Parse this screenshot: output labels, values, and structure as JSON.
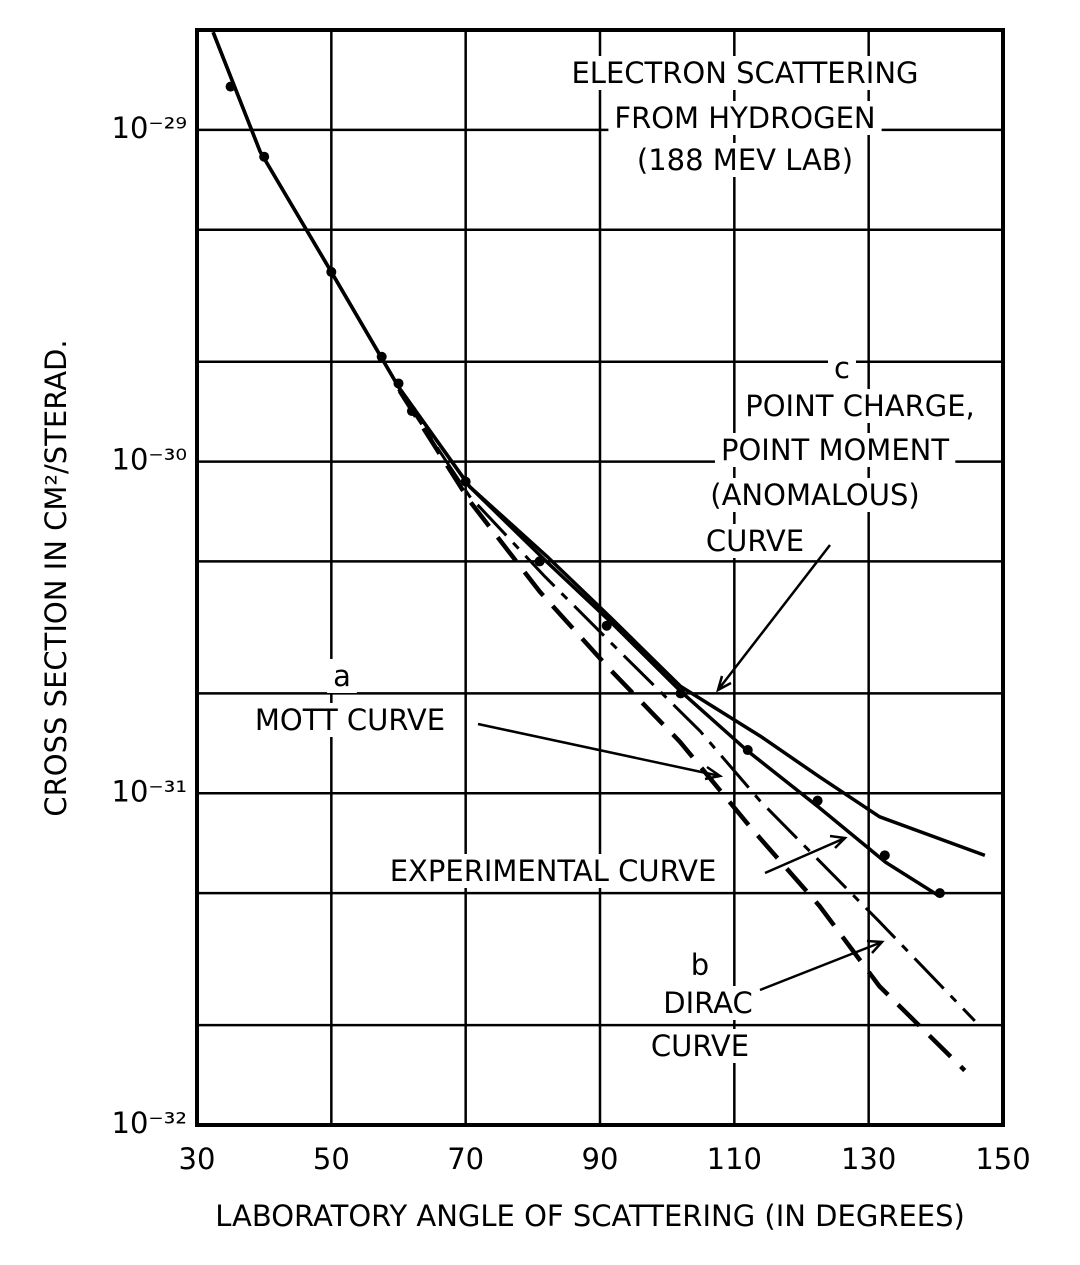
{
  "chart_data": {
    "type": "line",
    "log_y": true,
    "grid": true,
    "annotations": [
      {
        "text": "ELECTRON SCATTERING"
      },
      {
        "text": "FROM HYDROGEN"
      },
      {
        "text": "(188 MEV LAB)"
      },
      {
        "text": "c"
      },
      {
        "text": "POINT CHARGE,"
      },
      {
        "text": "POINT MOMENT"
      },
      {
        "text": "(ANOMALOUS)"
      },
      {
        "text": "CURVE"
      },
      {
        "text": "a"
      },
      {
        "text": "MOTT CURVE"
      },
      {
        "text": "EXPERIMENTAL CURVE"
      },
      {
        "text": "b"
      },
      {
        "text": "DIRAC"
      },
      {
        "text": "CURVE"
      }
    ],
    "x_label": "LABORATORY ANGLE OF SCATTERING (IN DEGREES)",
    "y_label": "CROSS SECTION IN CM²/STERAD.",
    "xlim": [
      30,
      150
    ],
    "xticks": [
      30,
      50,
      70,
      90,
      110,
      130,
      150
    ],
    "ylim": [
      1e-32,
      2e-29
    ],
    "yticks": [
      {
        "value": 1e-32,
        "label": "10⁻³²"
      },
      {
        "value": 1e-31,
        "label": "10⁻³¹"
      },
      {
        "value": 1e-30,
        "label": "10⁻³⁰"
      },
      {
        "value": 1e-29,
        "label": "10⁻²⁹"
      }
    ],
    "yminor": [
      2e-32,
      5e-32,
      2e-31,
      5e-31,
      2e-30,
      5e-30
    ],
    "series": [
      {
        "color": "#000000",
        "style": "solid",
        "x": [
          32.4,
          39.4,
          50,
          60,
          70.6,
          82,
          91.5,
          102,
          112,
          122.5,
          132.5,
          140.5
        ],
        "values": [
          1.97e-29,
          8.6e-30,
          3.73e-30,
          1.68e-30,
          8.4e-31,
          5e-31,
          3.3e-31,
          2.03e-31,
          1.34e-31,
          9.1e-32,
          6.2e-32,
          4.9e-32
        ]
      },
      {
        "color": "#000000",
        "style": "solid",
        "x": [
          32.4,
          39.4,
          50,
          60,
          70.6,
          82,
          91.5,
          102,
          113.8,
          122.7,
          131.6,
          147.3
        ],
        "values": [
          1.97e-29,
          8.6e-30,
          3.73e-30,
          1.68e-30,
          8.4e-31,
          5.2e-31,
          3.4e-31,
          2.1e-31,
          1.49e-31,
          1.12e-31,
          8.5e-32,
          6.5e-32
        ]
      },
      {
        "color": "#000000",
        "style": "dashdot",
        "x": [
          60,
          70.6,
          81.8,
          92.9,
          104.9,
          113.8,
          131.6,
          145.8
        ],
        "values": [
          1.65e-30,
          7.85e-31,
          4.5e-31,
          2.68e-31,
          1.54e-31,
          9.5e-32,
          4.1e-32,
          2.06e-32
        ]
      },
      {
        "color": "#000000",
        "style": "dashed",
        "x": [
          60.2,
          70.6,
          81,
          91.5,
          101.9,
          112.4,
          122.7,
          131.6,
          144.3
        ],
        "values": [
          1.63e-30,
          7.6e-31,
          4.06e-31,
          2.36e-31,
          1.43e-31,
          7.9e-32,
          4.57e-32,
          2.62e-32,
          1.46e-32
        ]
      }
    ],
    "points": {
      "color": "#000000",
      "x": [
        35,
        40,
        50,
        57.5,
        60,
        62,
        70,
        81,
        91,
        102,
        112,
        122.4,
        132.4,
        140.6
      ],
      "values": [
        1.35e-29,
        8.3e-30,
        3.73e-30,
        2.07e-30,
        1.72e-30,
        1.42e-30,
        8.7e-31,
        5e-31,
        3.2e-31,
        2e-31,
        1.35e-31,
        9.5e-32,
        6.5e-32,
        5e-32
      ]
    }
  }
}
